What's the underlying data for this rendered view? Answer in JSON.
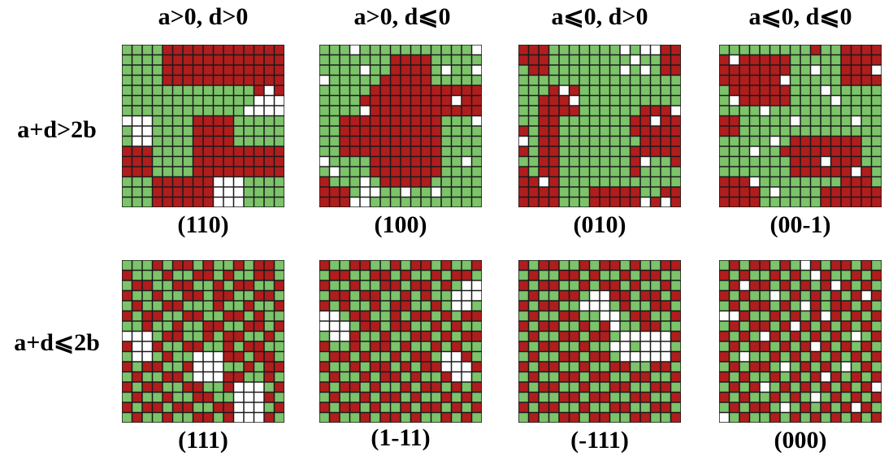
{
  "figure": {
    "column_headers": [
      "a>0, d>0",
      "a>0, d⩽0",
      "a⩽0, d>0",
      "a⩽0, d⩽0"
    ],
    "row_labels": [
      "a+d>2b",
      "a+d⩽2b"
    ],
    "captions": [
      "(110)",
      "(100)",
      "(010)",
      "(00-1)",
      "(111)",
      "(1-11)",
      "(-111)",
      "(000)"
    ]
  },
  "colors": {
    "green": "#7cc36a",
    "red": "#b01d1d",
    "white": "#ffffff",
    "grid_line": "#1a1a1a"
  },
  "grids": [
    [
      "GGGGRRRRRRRRRRRR",
      "GGGGRRRRRRRRRRRR",
      "GGGGRRRRRRRRRRRR",
      "GGGGRRRRRRRRRRRR",
      "GGGGGGGGGGGGGRWR",
      "GGGGGGGGGGGGGWWW",
      "GGGGGGGGGGGGWWWW",
      "WWWGGGGRRRRGGGGG",
      "GWWGGGGRRRRGGGGG",
      "GWWGGGGRRRRGGGGG",
      "RRRGGGGRRRRRRRRR",
      "RRRGGGGRRRRRRRRR",
      "RRRGGGGRRRRRRRRR",
      "GGGRRRRRRWWWGGGG",
      "GGGRRRRRRWWWGGGG",
      "GGGRRRRRRWWWGGGG"
    ],
    [
      "GGGWGGGGGGGGGGGW",
      "GGGGGGGRRRRGGGGG",
      "GGGGWGGRRRRGWGGW",
      "WGGGGGRRRRRGGGGG",
      "GGGGGRRRRRRRRRRR",
      "GGGGRRRRRRRRRWRR",
      "GGGGWRRRRRRRRRRR",
      "GGRRRRRRRRRRGGGW",
      "GGRRRRRRRRRRGGGG",
      "GGRRRRRRRRRRGGGG",
      "GGRRRRRRRRRRGGGG",
      "WGGGGRRRRRRRGGWG",
      "GWGGGRRRRRRRGGGG",
      "RGGGWGRRRRRGGGGG",
      "RRRGWWGGWGGWGGGG",
      "RRRWWGGGGGGGGGGG"
    ],
    [
      "RRRGGGGGGGWGWWRR",
      "RRRGGGGGGGGWGGRR",
      "GRRGGGGGGGWGWGRR",
      "GGGGGGGGGGGGGGGG",
      "GGGRWRGGGGGGGGGG",
      "GGRRRWGGGGGGGGGG",
      "GGRRRRGGGGGGRRRW",
      "GGRRGGGGGGGRRWRR",
      "RGRRGGGGGGGRRRRR",
      "WGRRGGGGGGGGRRRR",
      "RGRRGGGGGGGRRRRR",
      "GGRRGGGGGGGRWGGR",
      "RGRRGGGGGGGRGGGG",
      "RRWRGGGGGGGGGGGG",
      "RRRRGGGRRRRRGGRR",
      "RRRRGGGRRRRRWRWR"
    ],
    [
      "GGGGGGGGGRGGRRRR",
      "RWRRRRRGGGGGRRRR",
      "RRRRRRRGGWGGRRRW",
      "RRRRRRWGGGGGRRRR",
      "GRRRRRRGGGWGGGGG",
      "GWRRRRRGGGGWGGGG",
      "GGGGWGGGGGGGGGGG",
      "RRGGGGGWGGGGGWGG",
      "RRGGGGGGGGGGGGGG",
      "GGGGGWGRRRRRRRGG",
      "GGGWGGRRRRRRRRGG",
      "GGGGGGGRRRWRRRGG",
      "GGGGGGGRRRRRRWRG",
      "RRRWGGGGGGGGRRRG",
      "RRRRGWGGGGRRRRRR",
      "RRRRGGGGGGRRRRRR"
    ],
    [
      "GGGRGRRGRGGRGRRG",
      "RGGGRGGRRGRGGRRG",
      "GRRGGRRGGRGRRGGR",
      "RGGRGGRRGRRGGRRG",
      "GRGGRRGGGRGGRGGR",
      "RGRRGGRRGGRRGRGG",
      "GGRGGRGGRRGGRRGR",
      "WWWGRRGGRGRRGGRG",
      "RWWRGGRRGGRGRRGG",
      "GWWGRGGWWWRRGRRG",
      "RGRRGGRWWWGGRGRR",
      "GRGGRRGWWWRRGGRG",
      "RGRRGGRRGGRWWWGR",
      "GRGGRGGRRGGWWWRG",
      "RGRRGRRGGRRWWWGR",
      "GRGGRGGRRGRWWWRG"
    ],
    [
      "RGGRRGGRGRRGRGGR",
      "GRRGGRRGRGGRGRRG",
      "RGGRGGRRGRRGRGWW",
      "GRRGRRGGRGRGGWWW",
      "RGRGGRGRRGGRGWWG",
      "WWGRRGGRGRRGRGRR",
      "WWWGRRGRRGGRGRGG",
      "GWWRGGRGGRRGRGRR",
      "RGGRGRRGRGGRGRGG",
      "GRRGRGGRGRRGWWRG",
      "RGGRGRRGRGRRWWWR",
      "GRGGRGRRGRGGRWWG",
      "RGRRGRGGRGRRGRGR",
      "GRGGRGRRGRGGRGRG",
      "RGRRGRGGRGRRGRGR",
      "GRGGRGRRGRGGRGRG"
    ],
    [
      "RGRRGGRGRRGRGGRR",
      "GRGGRRGRGGRGRRGG",
      "RGRRGGRGRRGRGGRG",
      "GRGGRRGWWRRGRRGR",
      "RGRRGGWWWGRGGRRG",
      "GRGGRRGGWWGRRGGR",
      "RGRRGGRGRWGGRRGG",
      "GRGGRRGRRGWWWWWR",
      "RGRRGGRGGWWGWWWG",
      "GRGGRRGRRGWWWWWR",
      "RGRRGGRGGRRGGRRG",
      "GRGGRRGRRGGRRGGR",
      "RGRRGGRGGRRGGRRG",
      "GRGGRRGRRGGRRGGR",
      "RGRRGGRGGRRGGRRG",
      "GRGGRRGRRGGRRGGR"
    ],
    [
      "GRGRRGRGWRGRRGRG",
      "RGRGGRGRGWRGGRGR",
      "GRWRRGRGRGRWRGRG",
      "RGRGGWGRGRGRGRWR",
      "GRGRRGRGWRGRRGRG",
      "WWRGGRGRGRWRGRGR",
      "GRGRRGRWRGRGRGRG",
      "RGRGWRGRGRGRGWGR",
      "GRGRRGRGRWRGRGRG",
      "RGWGGRGRGRGRGRGR",
      "GRGRRGWGRGRGWGRG",
      "RGRGGRGRGRWRGRGR",
      "GRGRWGRGRGRGRGRW",
      "RGRGGRGRGWGRGRGR",
      "GRGRRGWGRGRGRWRG",
      "WGRGGRGRGRGRGRGR"
    ]
  ]
}
